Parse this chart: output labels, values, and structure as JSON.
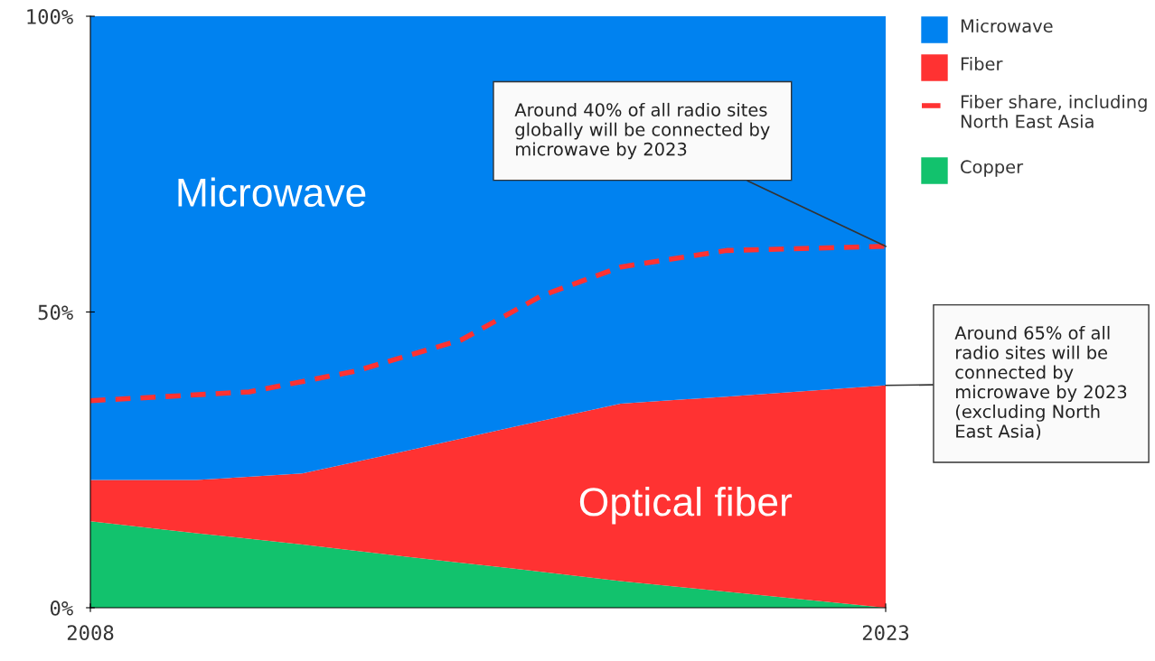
{
  "chart_data": {
    "type": "area",
    "stacked": true,
    "x": [
      2008,
      2010,
      2012,
      2014,
      2016,
      2018,
      2020,
      2023
    ],
    "series": [
      {
        "name": "Copper",
        "color": "#12c26d",
        "values": [
          14.6,
          12.6,
          10.7,
          8.6,
          6.6,
          4.5,
          2.7,
          0
        ]
      },
      {
        "name": "Fiber",
        "color": "#ff3232",
        "values": [
          7.0,
          9.0,
          12.0,
          18.0,
          24.0,
          30.0,
          33.0,
          37.6
        ]
      },
      {
        "name": "Microwave",
        "color": "#0082f0",
        "values": [
          78.4,
          78.4,
          77.3,
          73.4,
          69.4,
          65.5,
          64.3,
          62.4
        ]
      },
      {
        "name": "Fiber share, including North East Asia",
        "type": "line",
        "line_style": "dashed",
        "color": "#ff3232",
        "x": [
          2008,
          2011,
          2013,
          2015,
          2016.5,
          2018,
          2020,
          2023
        ],
        "values": [
          35.0,
          36.5,
          40.0,
          45.3,
          52.7,
          57.6,
          60.4,
          61.1
        ]
      }
    ],
    "xlim": [
      2008,
      2023
    ],
    "xticks": [
      2008,
      2023
    ],
    "ylim": [
      0,
      100
    ],
    "yticks": [
      {
        "value": 0,
        "label": "0%"
      },
      {
        "value": 50,
        "label": "50%"
      },
      {
        "value": 100,
        "label": "100%"
      }
    ],
    "grid": false,
    "legend": "top right",
    "annotations": [
      "Microwave",
      "Optical fiber",
      {
        "text": "Around 40% of all radio sites globally will be connected by microwave by 2023",
        "x": 2023,
        "y": 61.1
      },
      {
        "text": "Around 65% of all radio sites will be connected by microwave by 2023 (excluding North East Asia)",
        "x": 2023,
        "y": 37.6
      }
    ]
  }
}
